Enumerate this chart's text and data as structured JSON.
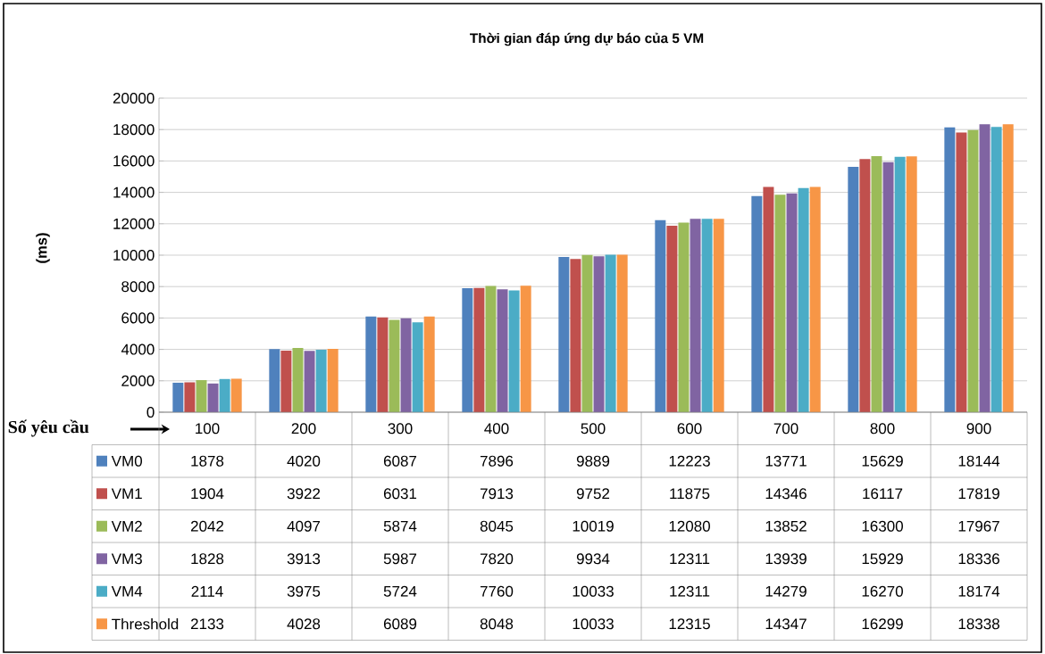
{
  "chart_data": {
    "type": "bar",
    "title": "Thời gian đáp ứng dự báo của 5 VM",
    "ylabel": "(ms)",
    "xlabel": "Số yêu cầu",
    "categories": [
      "100",
      "200",
      "300",
      "400",
      "500",
      "600",
      "700",
      "800",
      "900"
    ],
    "series": [
      {
        "name": "VM0",
        "color": "#4f81bd",
        "values": [
          1878,
          4020,
          6087,
          7896,
          9889,
          12223,
          13771,
          15629,
          18144
        ]
      },
      {
        "name": "VM1",
        "color": "#c0504d",
        "values": [
          1904,
          3922,
          6031,
          7913,
          9752,
          11875,
          14346,
          16117,
          17819
        ]
      },
      {
        "name": "VM2",
        "color": "#9bbb59",
        "values": [
          2042,
          4097,
          5874,
          8045,
          10019,
          12080,
          13852,
          16300,
          17967
        ]
      },
      {
        "name": "VM3",
        "color": "#8064a2",
        "values": [
          1828,
          3913,
          5987,
          7820,
          9934,
          12311,
          13939,
          15929,
          18336
        ]
      },
      {
        "name": "VM4",
        "color": "#4bacc6",
        "values": [
          2114,
          3975,
          5724,
          7760,
          10033,
          12311,
          14279,
          16270,
          18174
        ]
      },
      {
        "name": "Threshold",
        "color": "#f79646",
        "values": [
          2133,
          4028,
          6089,
          8048,
          10033,
          12315,
          14347,
          16299,
          18338
        ]
      }
    ],
    "ylim": [
      0,
      20000
    ],
    "yticks": [
      0,
      2000,
      4000,
      6000,
      8000,
      10000,
      12000,
      14000,
      16000,
      18000,
      20000
    ],
    "grid": "y",
    "legend": "bottom left",
    "data_labels": true
  }
}
